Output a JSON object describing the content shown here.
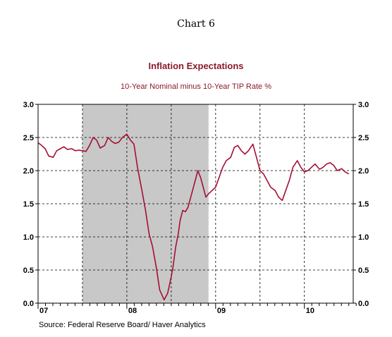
{
  "header": {
    "chart_number": "Chart 6"
  },
  "footer": {
    "source": "Source:  Federal Reserve Board/ Haver Analytics"
  },
  "colors": {
    "series": "#a50f33",
    "recession": "#c8c8c8",
    "title": "#8b1a2b"
  },
  "chart_data": {
    "type": "line",
    "title": "Inflation Expectations",
    "subtitle": "10-Year Nominal minus 10-Year TIP Rate   %",
    "x_tick_labels": [
      "07",
      "08",
      "09",
      "10"
    ],
    "y_tick_labels": [
      "0.0",
      "0.5",
      "1.0",
      "1.5",
      "2.0",
      "2.5",
      "3.0"
    ],
    "xlim": [
      2007.0,
      2010.55
    ],
    "ylim": [
      0,
      3
    ],
    "grid": "dashed-horizontal",
    "shaded_period": [
      2007.5,
      2008.92
    ],
    "series": [
      {
        "x": [
          2007.0,
          2007.04,
          2007.08,
          2007.12,
          2007.17,
          2007.21,
          2007.25,
          2007.29,
          2007.33,
          2007.38,
          2007.42,
          2007.46,
          2007.5,
          2007.54,
          2007.58,
          2007.62,
          2007.66,
          2007.7,
          2007.75,
          2007.79,
          2007.83,
          2007.87,
          2007.91,
          2007.95,
          2008.0,
          2008.04,
          2008.08,
          2008.12,
          2008.17,
          2008.21,
          2008.25,
          2008.29,
          2008.33,
          2008.37,
          2008.42,
          2008.46,
          2008.5,
          2008.52,
          2008.55,
          2008.58,
          2008.6,
          2008.63,
          2008.66,
          2008.69,
          2008.71,
          2008.74,
          2008.77,
          2008.8,
          2008.83,
          2008.86,
          2008.89,
          2008.92,
          2008.96,
          2009.0,
          2009.04,
          2009.08,
          2009.12,
          2009.17,
          2009.21,
          2009.25,
          2009.29,
          2009.33,
          2009.37,
          2009.42,
          2009.46,
          2009.5,
          2009.54,
          2009.58,
          2009.62,
          2009.67,
          2009.71,
          2009.75,
          2009.79,
          2009.83,
          2009.87,
          2009.92,
          2009.96,
          2010.0,
          2010.04,
          2010.08,
          2010.12,
          2010.17,
          2010.21,
          2010.25,
          2010.29,
          2010.33,
          2010.37,
          2010.42,
          2010.46,
          2010.5
        ],
        "values": [
          2.42,
          2.38,
          2.33,
          2.22,
          2.2,
          2.3,
          2.33,
          2.36,
          2.32,
          2.33,
          2.3,
          2.31,
          2.3,
          2.29,
          2.38,
          2.5,
          2.46,
          2.34,
          2.38,
          2.5,
          2.44,
          2.41,
          2.43,
          2.5,
          2.55,
          2.46,
          2.4,
          2.05,
          1.7,
          1.4,
          1.05,
          0.85,
          0.55,
          0.2,
          0.05,
          0.15,
          0.4,
          0.55,
          0.85,
          1.05,
          1.25,
          1.4,
          1.38,
          1.45,
          1.55,
          1.7,
          1.85,
          2.0,
          1.9,
          1.75,
          1.6,
          1.65,
          1.7,
          1.75,
          1.9,
          2.05,
          2.15,
          2.2,
          2.35,
          2.38,
          2.3,
          2.25,
          2.3,
          2.4,
          2.2,
          2.0,
          1.95,
          1.85,
          1.75,
          1.7,
          1.6,
          1.55,
          1.7,
          1.85,
          2.05,
          2.15,
          2.05,
          1.98,
          2.0,
          2.05,
          2.1,
          2.02,
          2.05,
          2.1,
          2.12,
          2.08,
          2.0,
          2.03,
          1.98,
          1.95
        ]
      }
    ]
  }
}
